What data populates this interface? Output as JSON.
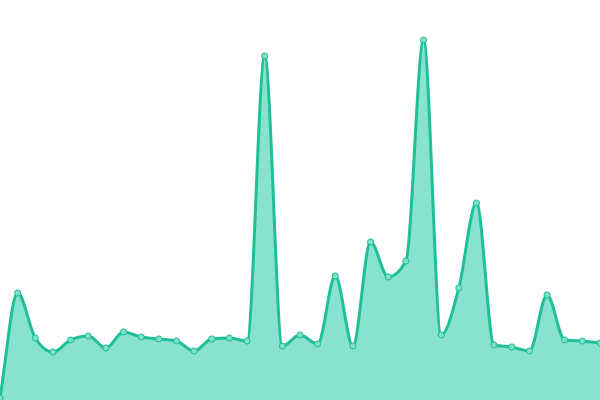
{
  "chart_data": {
    "type": "area",
    "categories": [
      null,
      null,
      null,
      null,
      null,
      null,
      null,
      null,
      null,
      null,
      null,
      null,
      null,
      null,
      null,
      null,
      null,
      null,
      null,
      null,
      null,
      null,
      null,
      null,
      null,
      null,
      null,
      null,
      null,
      null,
      null,
      null,
      null,
      null,
      null
    ],
    "series": [
      {
        "color": "#1fbf97",
        "fill": "#88e2cd",
        "point_color": "#7fe0c7",
        "values": [
          2,
          107,
          62,
          48,
          60,
          64,
          52,
          68,
          63,
          61,
          59,
          49,
          61,
          62,
          59,
          344,
          54,
          65,
          56,
          124,
          54,
          158,
          123,
          139,
          360,
          65,
          112,
          197,
          55,
          53,
          49,
          105,
          60,
          59,
          57
        ]
      }
    ],
    "ylim": [
      0,
      400
    ]
  }
}
